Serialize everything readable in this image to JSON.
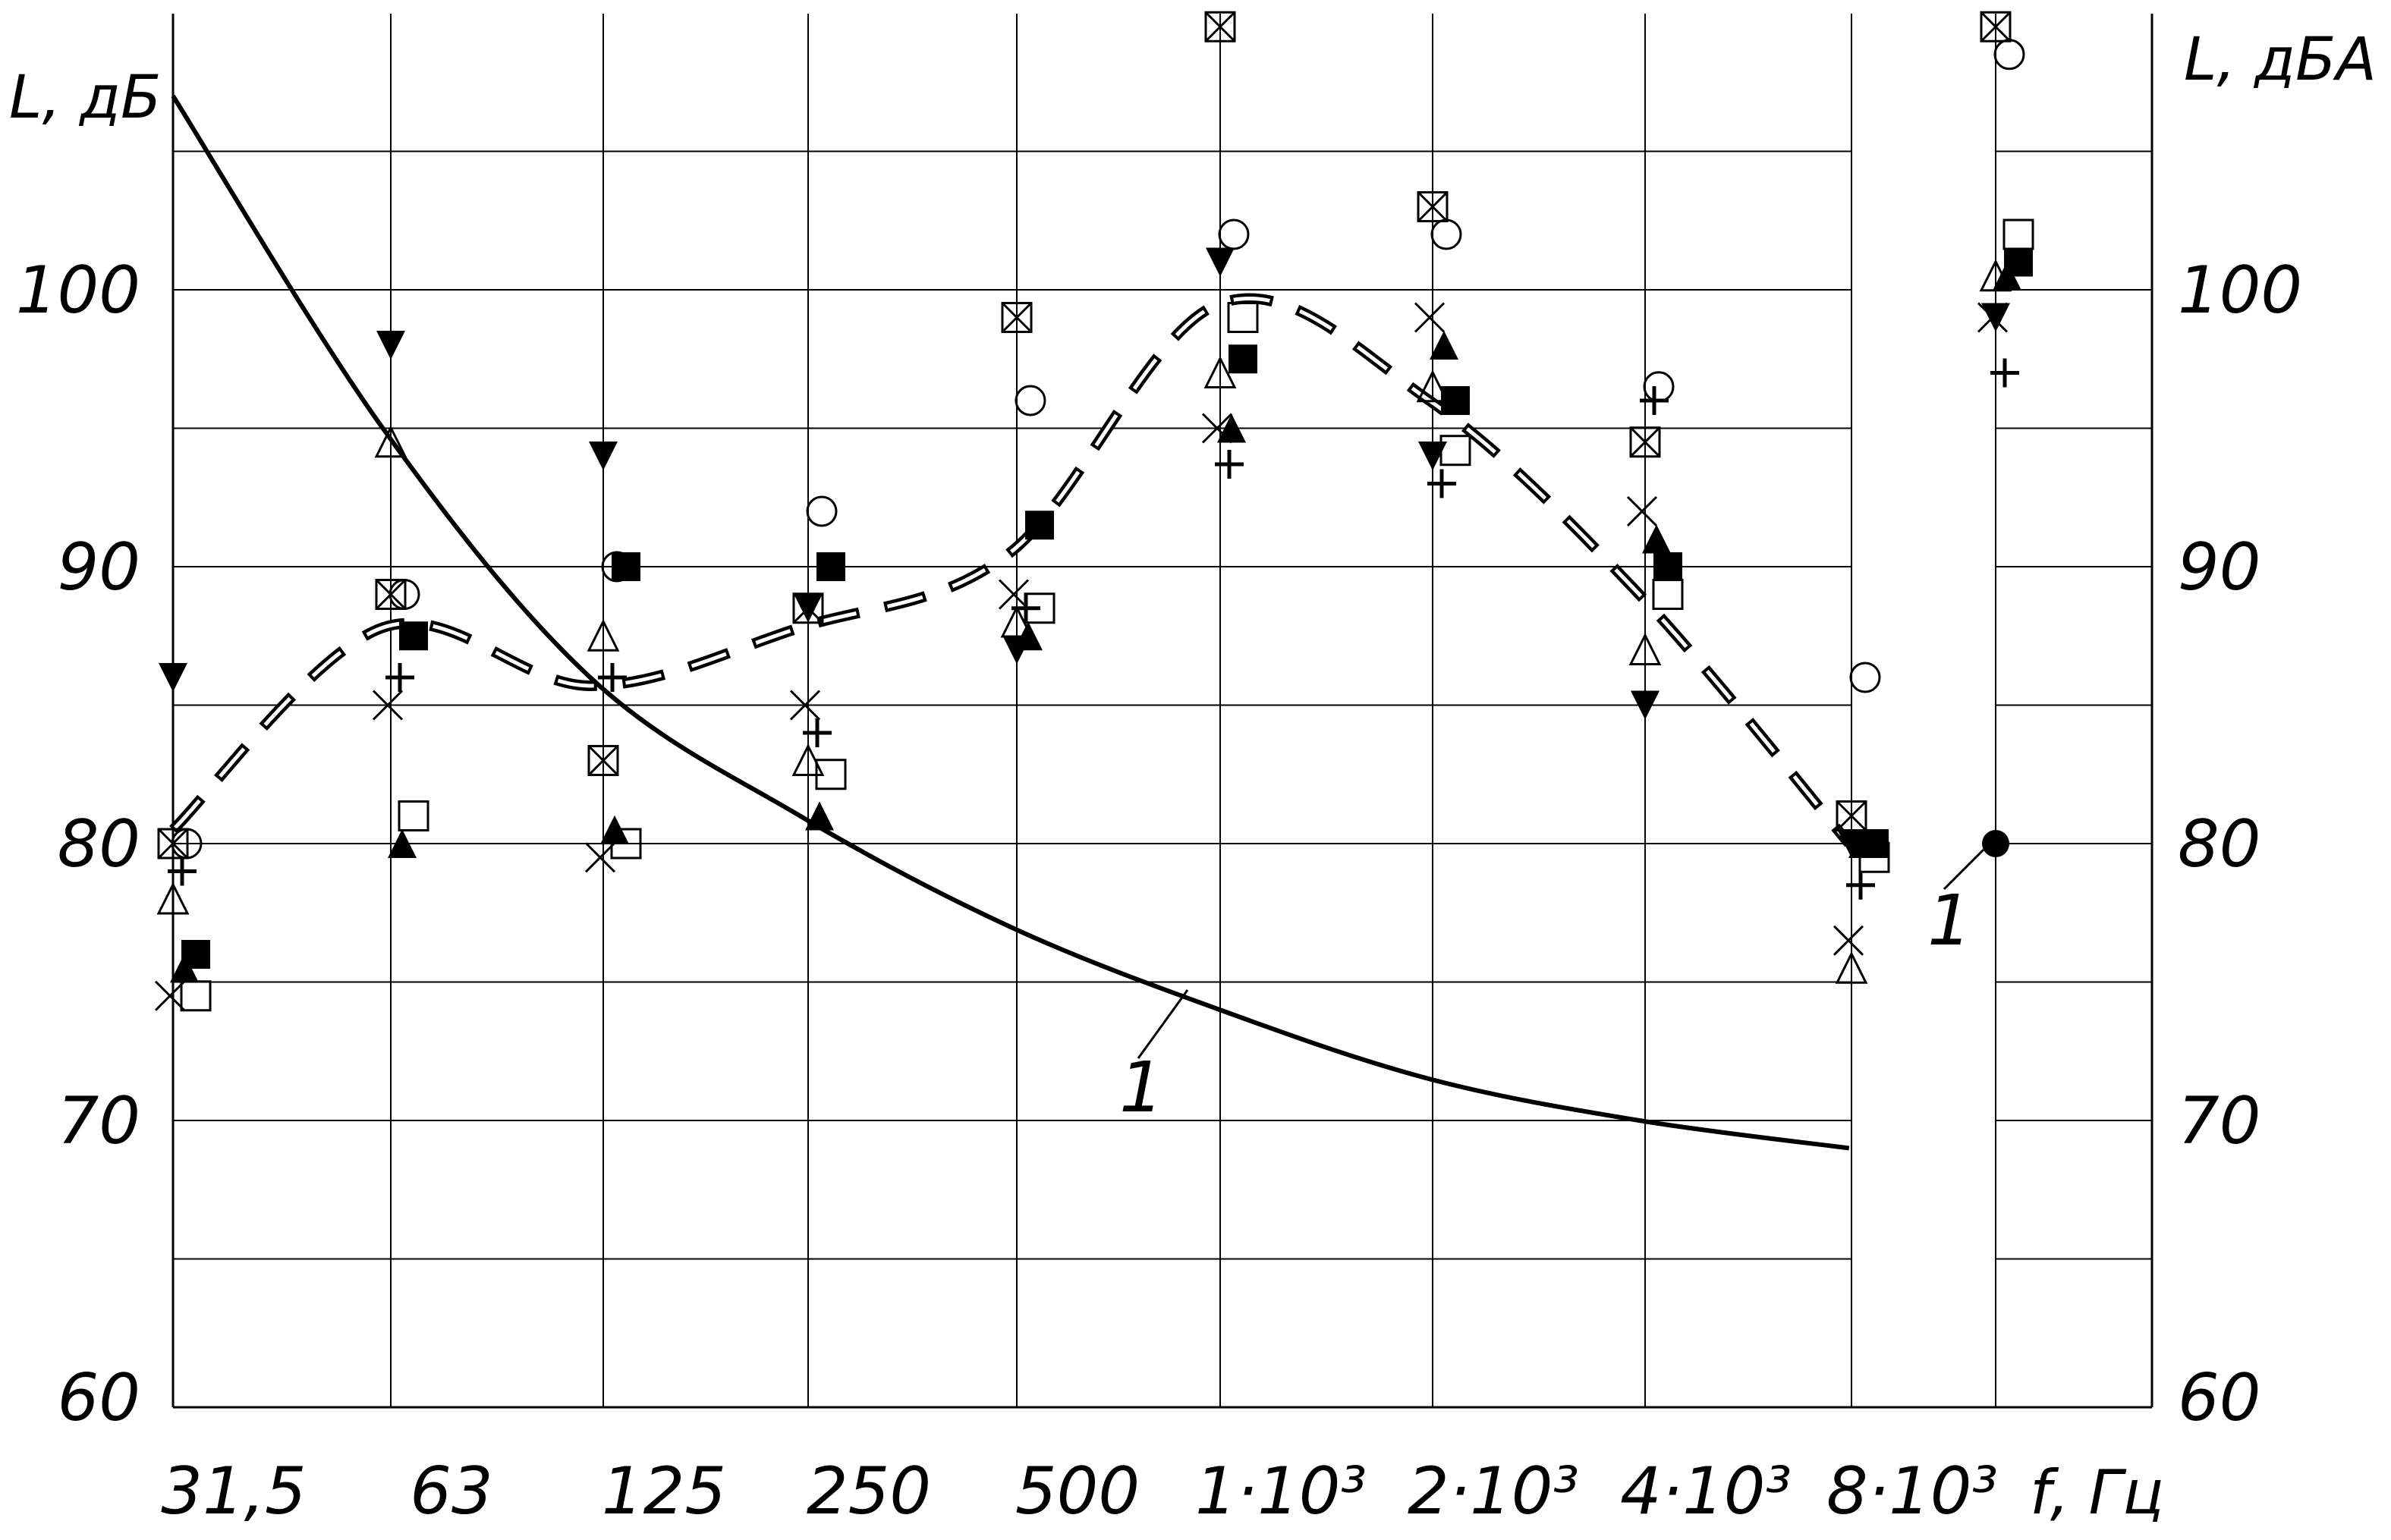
{
  "chart_data": {
    "type": "scatter",
    "title": "",
    "xlabel": "f, Гц",
    "ylabel_left": "L, дБ",
    "ylabel_right": "L, дБА",
    "x_ticks": [
      "31,5",
      "63",
      "125",
      "250",
      "500",
      "1·10³",
      "2·10³",
      "4·10³",
      "8·10³"
    ],
    "dba_column_tick": "",
    "y_ticks": [
      "60",
      "70",
      "80",
      "90",
      "100"
    ],
    "y_ticks_right": [
      "60",
      "70",
      "80",
      "90",
      "100"
    ],
    "ylim": [
      60,
      108
    ],
    "grid": true,
    "annotation_curve": "1",
    "annotation_point": "1",
    "norm_curve": {
      "name": "1",
      "x": [
        31.5,
        63,
        125,
        250,
        500,
        1000,
        2000,
        4000,
        8000
      ],
      "y": [
        107,
        95,
        86,
        81,
        77,
        74,
        71.5,
        70,
        69
      ]
    },
    "dashed_curve": {
      "x": [
        31.5,
        63,
        125,
        250,
        500,
        1000,
        2000,
        4000,
        8000
      ],
      "y": [
        80.5,
        87.8,
        85.7,
        87.8,
        90.5,
        99.5,
        96,
        89,
        80
      ]
    },
    "norm_dba_point": 80,
    "series": [
      {
        "marker": "triangle-down-filled",
        "values": [
          86,
          98,
          94,
          88.5,
          87,
          101,
          94,
          85,
          80,
          99
        ]
      },
      {
        "marker": "triangle-up-open",
        "values": [
          78,
          94.5,
          87.5,
          83,
          88,
          97,
          96.5,
          87,
          75.5,
          100.5
        ]
      },
      {
        "marker": "x-cross",
        "values": [
          74.5,
          85,
          79.5,
          85,
          89,
          95,
          99,
          92,
          76.5,
          99
        ]
      },
      {
        "marker": "square-open",
        "values": [
          74.5,
          81,
          80,
          82.5,
          88.5,
          99,
          94.2,
          89,
          79.5,
          102
        ]
      },
      {
        "marker": "circle-open",
        "values": [
          80,
          89,
          90,
          92,
          96,
          102,
          102,
          96.5,
          86,
          108.5
        ]
      },
      {
        "marker": "plus",
        "values": [
          79,
          86,
          86,
          84,
          88.5,
          93.7,
          93,
          96,
          78.5,
          97
        ]
      },
      {
        "marker": "square-crossed",
        "values": [
          80,
          89,
          83,
          88.5,
          99,
          109.5,
          103,
          94.5,
          81,
          109.5
        ]
      },
      {
        "marker": "square-filled",
        "values": [
          76,
          87.5,
          90,
          90,
          91.5,
          97.5,
          96,
          90,
          80,
          101
        ]
      },
      {
        "marker": "triangle-up-filled",
        "values": [
          75.5,
          80,
          80.5,
          81,
          87.5,
          95,
          98,
          91,
          80,
          100.5
        ]
      }
    ]
  }
}
